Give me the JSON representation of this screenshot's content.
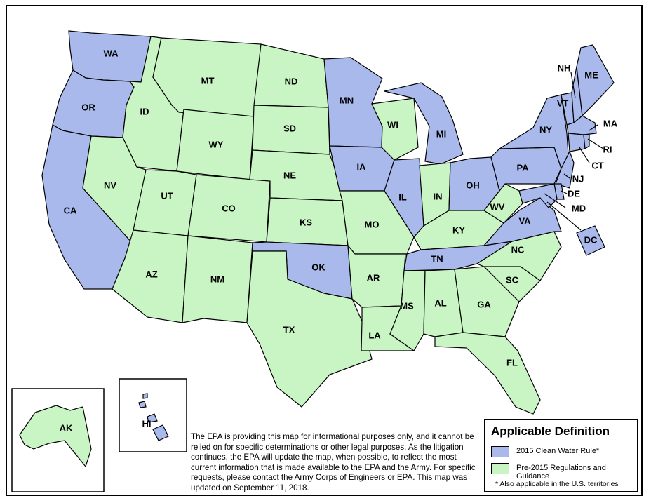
{
  "colors": {
    "rule_2015": "#a9b9ec",
    "pre_2015": "#c9f5c4",
    "border": "#000000"
  },
  "states": [
    {
      "code": "WA",
      "category": "rule_2015"
    },
    {
      "code": "OR",
      "category": "rule_2015"
    },
    {
      "code": "CA",
      "category": "rule_2015"
    },
    {
      "code": "ID",
      "category": "pre_2015"
    },
    {
      "code": "NV",
      "category": "pre_2015"
    },
    {
      "code": "MT",
      "category": "pre_2015"
    },
    {
      "code": "WY",
      "category": "pre_2015"
    },
    {
      "code": "UT",
      "category": "pre_2015"
    },
    {
      "code": "AZ",
      "category": "pre_2015"
    },
    {
      "code": "CO",
      "category": "pre_2015"
    },
    {
      "code": "NM",
      "category": "pre_2015"
    },
    {
      "code": "ND",
      "category": "pre_2015"
    },
    {
      "code": "SD",
      "category": "pre_2015"
    },
    {
      "code": "NE",
      "category": "pre_2015"
    },
    {
      "code": "KS",
      "category": "pre_2015"
    },
    {
      "code": "OK",
      "category": "rule_2015"
    },
    {
      "code": "TX",
      "category": "pre_2015"
    },
    {
      "code": "MN",
      "category": "rule_2015"
    },
    {
      "code": "IA",
      "category": "rule_2015"
    },
    {
      "code": "MO",
      "category": "pre_2015"
    },
    {
      "code": "AR",
      "category": "pre_2015"
    },
    {
      "code": "LA",
      "category": "pre_2015"
    },
    {
      "code": "WI",
      "category": "pre_2015"
    },
    {
      "code": "IL",
      "category": "rule_2015"
    },
    {
      "code": "MI",
      "category": "rule_2015"
    },
    {
      "code": "IN",
      "category": "pre_2015"
    },
    {
      "code": "OH",
      "category": "rule_2015"
    },
    {
      "code": "KY",
      "category": "pre_2015"
    },
    {
      "code": "TN",
      "category": "rule_2015"
    },
    {
      "code": "MS",
      "category": "pre_2015"
    },
    {
      "code": "AL",
      "category": "pre_2015"
    },
    {
      "code": "GA",
      "category": "pre_2015"
    },
    {
      "code": "FL",
      "category": "pre_2015"
    },
    {
      "code": "SC",
      "category": "pre_2015"
    },
    {
      "code": "NC",
      "category": "pre_2015"
    },
    {
      "code": "VA",
      "category": "rule_2015"
    },
    {
      "code": "WV",
      "category": "pre_2015"
    },
    {
      "code": "PA",
      "category": "rule_2015"
    },
    {
      "code": "NY",
      "category": "rule_2015"
    },
    {
      "code": "VT",
      "category": "rule_2015"
    },
    {
      "code": "NH",
      "category": "rule_2015"
    },
    {
      "code": "ME",
      "category": "rule_2015"
    },
    {
      "code": "MA",
      "category": "rule_2015"
    },
    {
      "code": "RI",
      "category": "rule_2015"
    },
    {
      "code": "CT",
      "category": "rule_2015"
    },
    {
      "code": "NJ",
      "category": "rule_2015"
    },
    {
      "code": "DE",
      "category": "rule_2015"
    },
    {
      "code": "MD",
      "category": "rule_2015"
    },
    {
      "code": "DC",
      "category": "rule_2015"
    },
    {
      "code": "AK",
      "category": "pre_2015"
    },
    {
      "code": "HI",
      "category": "rule_2015"
    }
  ],
  "disclaimer": "The EPA is providing this map for informational purposes only, and it cannot be relied on for specific determinations or other legal purposes. As the litigation continues, the EPA will update the map, when possible, to reflect the most current information that is made available to the EPA and the Army. For specific requests, please contact the Army Corps of Engineers or EPA. This map was updated on September 11, 2018.",
  "legend": {
    "title": "Applicable Definition",
    "items": [
      {
        "label": "2015 Clean Water Rule*",
        "category": "rule_2015"
      },
      {
        "label": "Pre-2015 Regulations and Guidance",
        "category": "pre_2015"
      }
    ],
    "note": "* Also applicable in the U.S. territories"
  }
}
